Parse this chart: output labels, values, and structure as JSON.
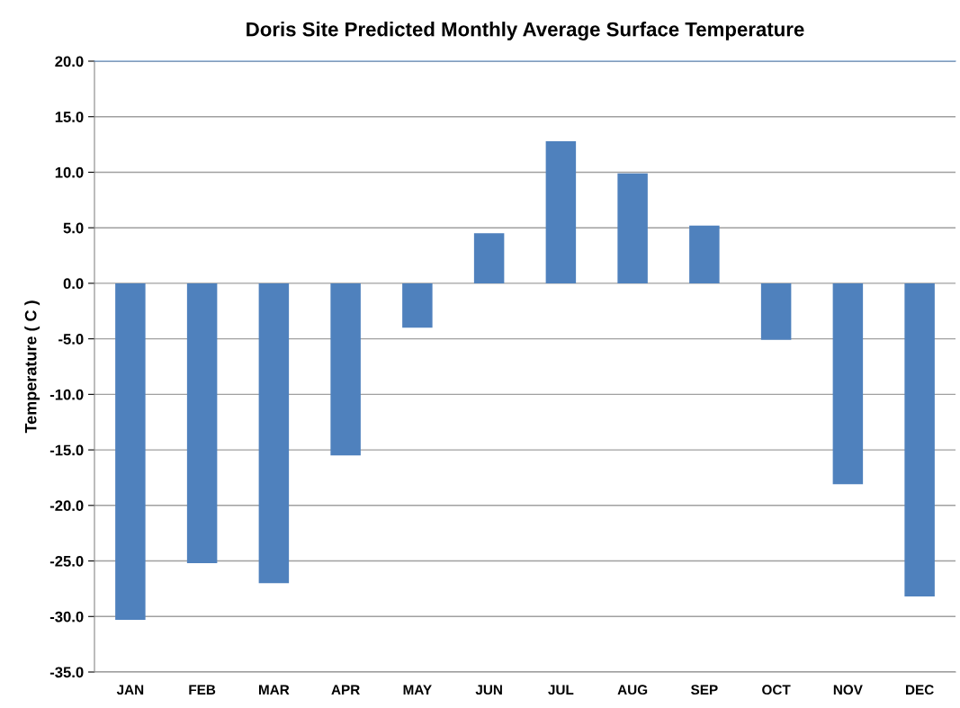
{
  "chart_data": {
    "type": "bar",
    "title": "Doris Site Predicted Monthly Average Surface Temperature",
    "ylabel": "Temperature ( C )",
    "categories": [
      "JAN",
      "FEB",
      "MAR",
      "APR",
      "MAY",
      "JUN",
      "JUL",
      "AUG",
      "SEP",
      "OCT",
      "NOV",
      "DEC"
    ],
    "values": [
      -30.3,
      -25.2,
      -27.0,
      -15.5,
      -4.0,
      4.5,
      12.8,
      9.9,
      5.2,
      -5.1,
      -18.1,
      -28.2
    ],
    "color": "#4f81bd",
    "ylim": [
      -35,
      20
    ],
    "yticks": [
      {
        "value": -35,
        "label": "-35.0"
      },
      {
        "value": -30,
        "label": "-30.0"
      },
      {
        "value": -25,
        "label": "-25.0"
      },
      {
        "value": -20,
        "label": "-20.0"
      },
      {
        "value": -15,
        "label": "-15.0"
      },
      {
        "value": -10,
        "label": "-10.0"
      },
      {
        "value": -5,
        "label": "-5.0"
      },
      {
        "value": 0,
        "label": "0.0"
      },
      {
        "value": 5,
        "label": "5.0"
      },
      {
        "value": 10,
        "label": "10.0"
      },
      {
        "value": 15,
        "label": "15.0"
      },
      {
        "value": 20,
        "label": "20.0"
      }
    ],
    "grid": "y"
  }
}
